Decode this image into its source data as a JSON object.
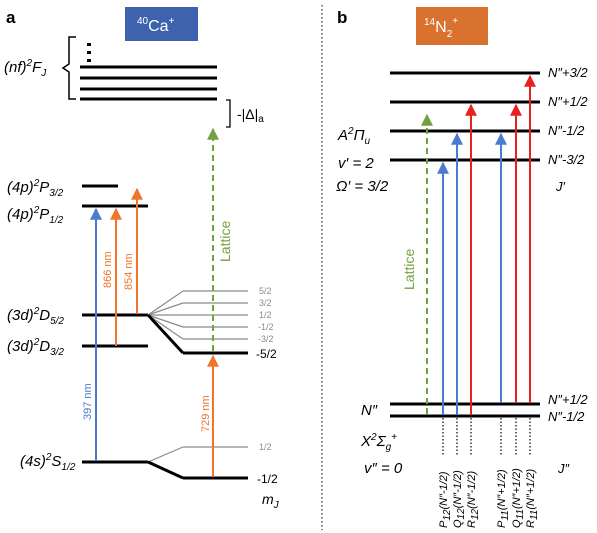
{
  "colors": {
    "ca_box": "#3e62ad",
    "n2_box": "#d9722e",
    "blue": "#4a7bd0",
    "orange": "#f0742a",
    "red": "#e8201e",
    "green": "#72a23e",
    "gray": "#8a8a8a"
  },
  "panel_a": {
    "label": "a",
    "species": {
      "mass": "40",
      "element": "Ca",
      "charge": "+"
    },
    "rydberg": {
      "pre": "(nf)",
      "sup": "2",
      "term": "F",
      "sub": "J"
    },
    "detuning": "-|Δ|",
    "detuning_sub": "a",
    "levels": [
      {
        "pre": "(4p)",
        "sup": "2",
        "term": "P",
        "sub": "3/2"
      },
      {
        "pre": "(4p)",
        "sup": "2",
        "term": "P",
        "sub": "1/2"
      },
      {
        "pre": "(3d)",
        "sup": "2",
        "term": "D",
        "sub": "5/2"
      },
      {
        "pre": "(3d)",
        "sup": "2",
        "term": "D",
        "sub": "3/2"
      },
      {
        "pre": "(4s)",
        "sup": "2",
        "term": "S",
        "sub": "1/2"
      }
    ],
    "d52_sublevels": [
      "5/2",
      "3/2",
      "1/2",
      "-1/2",
      "-3/2",
      "-5/2"
    ],
    "s12_sublevels": [
      "1/2",
      "-1/2"
    ],
    "mj_label": "m",
    "mj_sub": "J",
    "wavelengths": {
      "w397": "397 nm",
      "w866": "866 nm",
      "w854": "854 nm",
      "w729": "729 nm",
      "lattice": "Lattice"
    }
  },
  "panel_b": {
    "label": "b",
    "species": {
      "mass": "14",
      "element": "N",
      "sub": "2",
      "charge": "+"
    },
    "upper_state": {
      "sym": "A",
      "sup": "2",
      "term": "Π",
      "sub": "u",
      "vib": "v′ = 2",
      "omega": "Ω′ = 3/2"
    },
    "upper_levels": [
      "N″+3/2",
      "N″+1/2",
      "N″-1/2",
      "N″-3/2"
    ],
    "upper_j": "J′",
    "lower_n": "N″",
    "lower_state": {
      "sym": "X",
      "sup": "2",
      "term": "Σ",
      "sub": "g",
      "sup2": "+",
      "vib": "v″ = 0"
    },
    "lower_levels": [
      "N″+1/2",
      "N″-1/2"
    ],
    "lower_j": "J″",
    "lattice": "Lattice",
    "transitions": [
      {
        "b": "P",
        "s": "12",
        "arg": "(N″-1/2)"
      },
      {
        "b": "Q",
        "s": "12",
        "arg": "(N″-1/2)"
      },
      {
        "b": "R",
        "s": "12",
        "arg": "(N″-1/2)"
      },
      {
        "b": "P",
        "s": "11",
        "arg": "(N″+1/2)"
      },
      {
        "b": "Q",
        "s": "11",
        "arg": "(N″+1/2)"
      },
      {
        "b": "R",
        "s": "11",
        "arg": "(N″+1/2)"
      }
    ]
  }
}
